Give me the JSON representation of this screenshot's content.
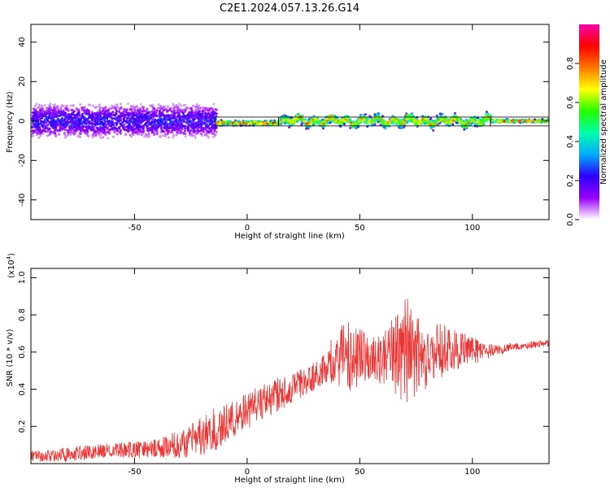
{
  "title": "C2E1.2024.057.13.26.G14",
  "chart_data": [
    {
      "type": "heatmap",
      "title": "",
      "xlabel": "Height of straight line (km)",
      "ylabel": "Frequency (Hz)",
      "xlim": [
        -96,
        134
      ],
      "ylim": [
        -50,
        49
      ],
      "x_ticks": [
        -50,
        0,
        50,
        100
      ],
      "y_ticks": [
        -40,
        -20,
        0,
        20,
        40
      ],
      "colorbar": {
        "label": "Normalized spectral amplitude",
        "range": [
          0.0,
          1.0
        ],
        "ticks": [
          0.0,
          0.2,
          0.4,
          0.6,
          0.8
        ],
        "colormap": [
          "#ffffff",
          "#9a00ff",
          "#2a00ff",
          "#00aaff",
          "#00ffaa",
          "#22ff00",
          "#ffff00",
          "#ff7700",
          "#ff0000",
          "#ff00aa"
        ]
      },
      "features": [
        {
          "x_range": [
            -96,
            -14
          ],
          "freq_center": 0,
          "freq_spread": 8,
          "amplitude_peak": 0.3
        },
        {
          "x_range": [
            -14,
            14
          ],
          "freq_center": -1,
          "freq_spread": 1.5,
          "amplitude_peak": 0.95
        },
        {
          "x_range": [
            14,
            108
          ],
          "freq_center": 0,
          "freq_spread": 3,
          "amplitude_peak": 0.85
        },
        {
          "x_range": [
            108,
            134
          ],
          "freq_center": 0,
          "freq_spread": 1,
          "amplitude_peak": 0.95
        }
      ]
    },
    {
      "type": "line",
      "title": "",
      "xlabel": "Height of straight line (km)",
      "ylabel": "SNR (10 * v/v)",
      "y_multiplier": "(x10",
      "y_multiplier_exp": "4",
      "y_multiplier_close": ")",
      "xlim": [
        -96,
        134
      ],
      "ylim": [
        0.0,
        1.05
      ],
      "x_ticks": [
        -50,
        0,
        50,
        100
      ],
      "y_ticks": [
        0.2,
        0.4,
        0.6,
        0.8,
        1.0
      ],
      "y_tick_labels": [
        "0.2",
        "0.4",
        "0.6",
        "0.8",
        "1.0"
      ],
      "series": [
        {
          "color": "#ee3333",
          "x": [
            -96,
            -80,
            -60,
            -40,
            -25,
            -15,
            -5,
            5,
            15,
            25,
            35,
            38,
            45,
            55,
            62,
            70,
            75,
            85,
            95,
            105,
            110,
            120,
            134
          ],
          "y": [
            0.04,
            0.05,
            0.07,
            0.08,
            0.12,
            0.18,
            0.25,
            0.32,
            0.38,
            0.44,
            0.51,
            0.56,
            0.58,
            0.56,
            0.57,
            0.62,
            0.58,
            0.61,
            0.62,
            0.6,
            0.61,
            0.63,
            0.65
          ],
          "spread": [
            0.03,
            0.04,
            0.04,
            0.05,
            0.09,
            0.12,
            0.1,
            0.1,
            0.09,
            0.08,
            0.08,
            0.14,
            0.2,
            0.12,
            0.15,
            0.3,
            0.22,
            0.16,
            0.1,
            0.05,
            0.03,
            0.02,
            0.02
          ]
        }
      ]
    }
  ]
}
